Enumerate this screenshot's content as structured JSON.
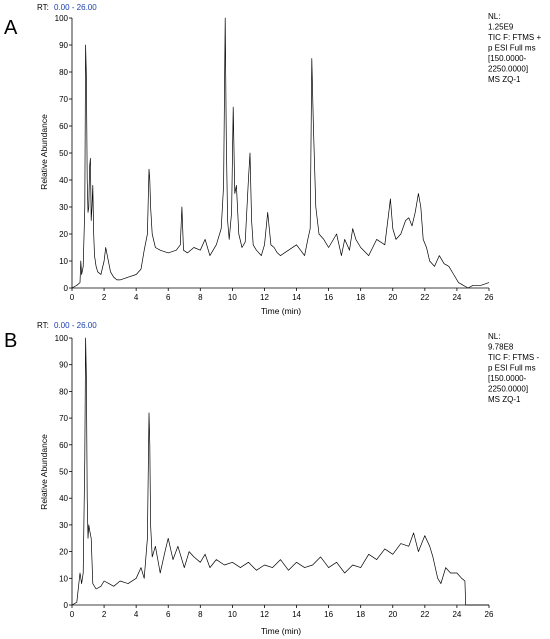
{
  "chart_data": [
    {
      "type": "line",
      "panel": "A",
      "rt_label": "RT:",
      "rt_range": "0.00 - 26.00",
      "xlabel": "Time (min)",
      "ylabel": "Relative Abundance",
      "xlim": [
        0,
        26
      ],
      "ylim": [
        0,
        100
      ],
      "x_ticks": [
        0,
        2,
        4,
        6,
        8,
        10,
        12,
        14,
        16,
        18,
        20,
        22,
        24,
        26
      ],
      "y_ticks": [
        0,
        10,
        20,
        30,
        40,
        50,
        60,
        70,
        80,
        90,
        100
      ],
      "info_lines": [
        "NL:",
        "1.25E9",
        "TIC F: FTMS +",
        "p ESI Full ms",
        "[150.0000-",
        "2250.0000]",
        "MS ZQ-1"
      ],
      "series": [
        {
          "x": [
            0,
            0.3,
            0.5,
            0.55,
            0.6,
            0.7,
            0.8,
            0.85,
            0.9,
            0.95,
            1.0,
            1.05,
            1.1,
            1.15,
            1.2,
            1.25,
            1.3,
            1.35,
            1.4,
            1.5,
            1.6,
            1.8,
            2.0,
            2.1,
            2.2,
            2.4,
            2.6,
            2.8,
            3.0,
            3.5,
            4.0,
            4.3,
            4.5,
            4.7,
            4.8,
            4.85,
            4.9,
            5.0,
            5.2,
            5.5,
            6.0,
            6.5,
            6.75,
            6.85,
            6.95,
            7.2,
            7.6,
            8.0,
            8.3,
            8.6,
            9.0,
            9.3,
            9.45,
            9.55,
            9.62,
            9.7,
            9.8,
            9.95,
            10.05,
            10.15,
            10.25,
            10.4,
            10.6,
            10.8,
            11.0,
            11.1,
            11.2,
            11.3,
            11.5,
            11.8,
            12.0,
            12.2,
            12.4,
            12.6,
            12.8,
            13.0,
            13.5,
            14.0,
            14.5,
            14.7,
            14.85,
            14.95,
            15.05,
            15.2,
            15.4,
            15.7,
            16.0,
            16.5,
            16.8,
            17.0,
            17.3,
            17.5,
            17.7,
            18.0,
            18.5,
            19.0,
            19.5,
            19.75,
            19.85,
            20.0,
            20.2,
            20.5,
            20.8,
            21.0,
            21.2,
            21.4,
            21.6,
            21.75,
            21.9,
            22.1,
            22.3,
            22.6,
            22.9,
            23.2,
            23.5,
            23.8,
            24.1,
            24.4,
            24.7,
            25.0,
            25.5,
            26.0
          ],
          "y": [
            0,
            1,
            2,
            10,
            5,
            8,
            30,
            90,
            78,
            40,
            28,
            30,
            45,
            48,
            25,
            30,
            38,
            20,
            12,
            8,
            6,
            5,
            10,
            15,
            12,
            6,
            4,
            3,
            3,
            4,
            5,
            7,
            14,
            20,
            44,
            40,
            30,
            20,
            15,
            14,
            13,
            14,
            16,
            30,
            14,
            13,
            15,
            14,
            18,
            12,
            16,
            22,
            38,
            100,
            55,
            25,
            18,
            28,
            67,
            35,
            38,
            20,
            15,
            17,
            40,
            50,
            25,
            16,
            14,
            12,
            16,
            28,
            16,
            15,
            13,
            12,
            14,
            16,
            12,
            18,
            22,
            85,
            60,
            30,
            20,
            18,
            15,
            20,
            12,
            18,
            14,
            22,
            18,
            15,
            12,
            18,
            16,
            28,
            33,
            22,
            18,
            20,
            25,
            26,
            23,
            28,
            35,
            30,
            18,
            15,
            10,
            8,
            12,
            9,
            8,
            5,
            2,
            1,
            0,
            1,
            1,
            2
          ]
        }
      ]
    },
    {
      "type": "line",
      "panel": "B",
      "rt_label": "RT:",
      "rt_range": "0.00 - 26.00",
      "xlabel": "Time (min)",
      "ylabel": "Relative Abundance",
      "xlim": [
        0,
        26
      ],
      "ylim": [
        0,
        100
      ],
      "x_ticks": [
        0,
        2,
        4,
        6,
        8,
        10,
        12,
        14,
        16,
        18,
        20,
        22,
        24,
        26
      ],
      "y_ticks": [
        0,
        10,
        20,
        30,
        40,
        50,
        60,
        70,
        80,
        90,
        100
      ],
      "info_lines": [
        "NL:",
        "9.78E8",
        "TIC F: FTMS -",
        "p ESI Full ms",
        "[150.0000-",
        "2250.0000]",
        "MS ZQ-1"
      ],
      "series": [
        {
          "x": [
            0,
            0.3,
            0.5,
            0.6,
            0.7,
            0.8,
            0.85,
            0.9,
            0.95,
            1.0,
            1.05,
            1.1,
            1.2,
            1.3,
            1.5,
            1.8,
            2.0,
            2.3,
            2.6,
            3.0,
            3.5,
            4.0,
            4.3,
            4.5,
            4.7,
            4.8,
            4.85,
            4.9,
            5.0,
            5.2,
            5.5,
            5.8,
            6.0,
            6.3,
            6.6,
            7.0,
            7.3,
            7.6,
            8.0,
            8.3,
            8.6,
            9.0,
            9.5,
            10.0,
            10.5,
            11.0,
            11.5,
            12.0,
            12.5,
            13.0,
            13.5,
            14.0,
            14.5,
            15.0,
            15.5,
            16.0,
            16.5,
            17.0,
            17.5,
            18.0,
            18.5,
            19.0,
            19.5,
            20.0,
            20.5,
            21.0,
            21.3,
            21.6,
            22.0,
            22.3,
            22.5,
            22.8,
            23.0,
            23.3,
            23.6,
            24.0,
            24.3,
            24.5,
            24.55,
            25.0,
            26.0
          ],
          "y": [
            0,
            1,
            12,
            8,
            12,
            55,
            100,
            85,
            40,
            25,
            30,
            28,
            25,
            8,
            6,
            7,
            9,
            8,
            7,
            9,
            8,
            10,
            14,
            10,
            25,
            72,
            60,
            30,
            18,
            22,
            12,
            20,
            25,
            17,
            22,
            14,
            20,
            18,
            16,
            19,
            14,
            17,
            15,
            16,
            14,
            16,
            13,
            15,
            14,
            17,
            13,
            16,
            14,
            15,
            18,
            14,
            16,
            12,
            15,
            14,
            19,
            17,
            21,
            19,
            23,
            22,
            27,
            20,
            26,
            22,
            18,
            10,
            8,
            14,
            12,
            12,
            10,
            9,
            0,
            0,
            0
          ]
        }
      ]
    }
  ]
}
